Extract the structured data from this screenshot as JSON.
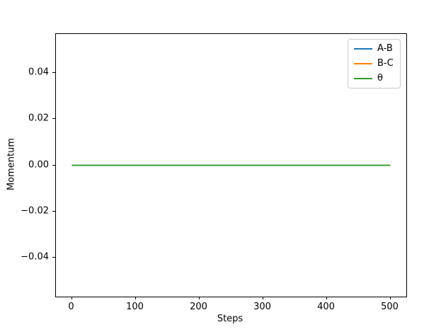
{
  "figure": {
    "background_color": "#ffffff",
    "spine_color": "#000000"
  },
  "chart_data": {
    "type": "line",
    "title": "",
    "xlabel": "Steps",
    "ylabel": "Momentum",
    "xlim": [
      -25,
      525
    ],
    "ylim": [
      -0.0567,
      0.0567
    ],
    "grid": false,
    "x_ticks": [
      0,
      100,
      200,
      300,
      400,
      500
    ],
    "x_tick_labels": [
      "0",
      "100",
      "200",
      "300",
      "400",
      "500"
    ],
    "y_ticks": [
      -0.04,
      -0.02,
      0.0,
      0.02,
      0.04
    ],
    "y_tick_labels": [
      "−0.04",
      "−0.02",
      "0.00",
      "0.02",
      "0.04"
    ],
    "legend_position": "upper right",
    "series": [
      {
        "name": "A-B",
        "color": "#1f77b4",
        "x": [
          0,
          500
        ],
        "y": [
          0.0,
          0.0
        ]
      },
      {
        "name": "B-C",
        "color": "#ff7f0e",
        "x": [
          0,
          500
        ],
        "y": [
          0.0,
          0.0
        ]
      },
      {
        "name": "θ",
        "color": "#2ca02c",
        "x": [
          0,
          500
        ],
        "y": [
          0.0,
          0.0
        ]
      }
    ]
  }
}
